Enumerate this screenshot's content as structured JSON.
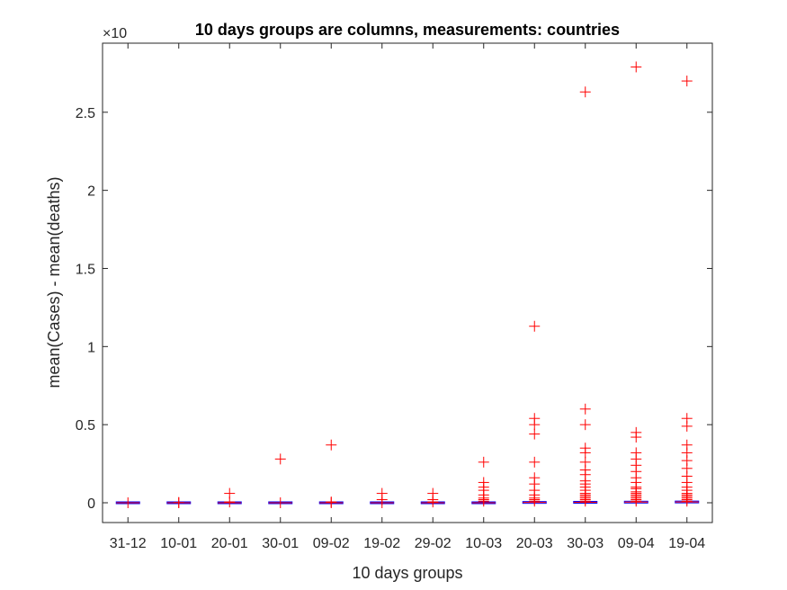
{
  "chart_data": {
    "type": "boxplot",
    "title": "10 days groups are columns, measurements: countries",
    "xlabel": "10 days groups",
    "ylabel": "mean(Cases) - mean(deaths)",
    "exponent_label": "×10",
    "categories": [
      "31-12",
      "10-01",
      "20-01",
      "30-01",
      "09-02",
      "19-02",
      "29-02",
      "10-03",
      "20-03",
      "30-03",
      "09-04",
      "19-04"
    ],
    "ylim": [
      -0.13,
      3.0
    ],
    "yticks": [
      0,
      0.5,
      1,
      1.5,
      2,
      2.5
    ],
    "ytick_labels": [
      "0",
      "0.5",
      "1",
      "1.5",
      "2",
      "2.5"
    ],
    "grid": false,
    "colors": {
      "outlier": "#ff0000",
      "median": "#ff0000",
      "box": "#0000ff",
      "axis": "#262626"
    },
    "medians": [
      0,
      0,
      0,
      0,
      0,
      0,
      0,
      0,
      0.002,
      0.003,
      0.004,
      0.005
    ],
    "outliers": [
      [
        0
      ],
      [
        0,
        0.002
      ],
      [
        0.005,
        0.06
      ],
      [
        0,
        0.28
      ],
      [
        0,
        0.005,
        0.37
      ],
      [
        0,
        0.02,
        0.06
      ],
      [
        0.005,
        0.02,
        0.06
      ],
      [
        0.01,
        0.02,
        0.03,
        0.05,
        0.08,
        0.1,
        0.13,
        0.26
      ],
      [
        0.01,
        0.02,
        0.03,
        0.05,
        0.08,
        0.12,
        0.16,
        0.26,
        0.44,
        0.5,
        0.54,
        1.13
      ],
      [
        0.01,
        0.02,
        0.03,
        0.04,
        0.05,
        0.06,
        0.08,
        0.1,
        0.12,
        0.14,
        0.18,
        0.21,
        0.26,
        0.32,
        0.35,
        0.5,
        0.6,
        2.63
      ],
      [
        0.01,
        0.02,
        0.03,
        0.04,
        0.05,
        0.06,
        0.07,
        0.09,
        0.1,
        0.13,
        0.16,
        0.2,
        0.24,
        0.28,
        0.32,
        0.42,
        0.45,
        2.79
      ],
      [
        0.01,
        0.02,
        0.03,
        0.04,
        0.05,
        0.06,
        0.08,
        0.1,
        0.13,
        0.17,
        0.22,
        0.27,
        0.32,
        0.37,
        0.49,
        0.54,
        2.7
      ]
    ]
  }
}
